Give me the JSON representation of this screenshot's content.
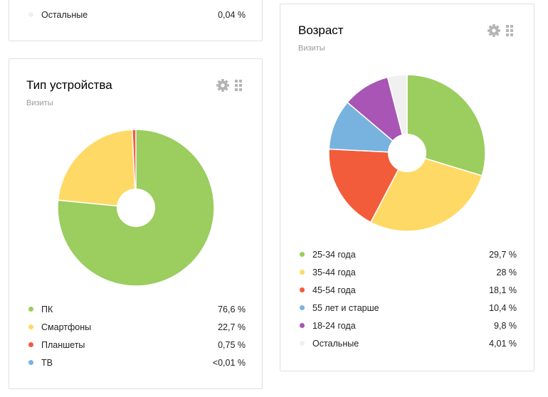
{
  "top_card": {
    "legend": [
      {
        "label": "Остальные",
        "value": "0,04 %",
        "color": "#f0f0f0"
      }
    ]
  },
  "device_card": {
    "title": "Тип устройства",
    "subtitle": "Визиты",
    "settings_icon": "gear-icon",
    "drag_icon": "grid-icon",
    "chart_data": {
      "type": "pie",
      "categories": [
        "ПК",
        "Смартфоны",
        "Планшеты",
        "ТВ"
      ],
      "values": [
        76.6,
        22.7,
        0.75,
        0.01
      ],
      "colors": [
        "#9bcd5f",
        "#ffd966",
        "#f25c3b",
        "#78b3e0"
      ]
    },
    "legend": [
      {
        "label": "ПК",
        "value": "76,6 %",
        "color": "#9bcd5f"
      },
      {
        "label": "Смартфоны",
        "value": "22,7 %",
        "color": "#ffd966"
      },
      {
        "label": "Планшеты",
        "value": "0,75 %",
        "color": "#f25c3b"
      },
      {
        "label": "ТВ",
        "value": "<0,01 %",
        "color": "#78b3e0"
      }
    ]
  },
  "age_card": {
    "title": "Возраст",
    "subtitle": "Визиты",
    "settings_icon": "gear-icon",
    "drag_icon": "grid-icon",
    "chart_data": {
      "type": "pie",
      "categories": [
        "25-34 года",
        "35-44 года",
        "45-54 года",
        "55 лет и старше",
        "18-24 года",
        "Остальные"
      ],
      "values": [
        29.7,
        28,
        18.1,
        10.4,
        9.8,
        4.01
      ],
      "colors": [
        "#9bcd5f",
        "#ffd966",
        "#f25c3b",
        "#78b3e0",
        "#a855b5",
        "#f0f0f0"
      ]
    },
    "legend": [
      {
        "label": "25-34 года",
        "value": "29,7 %",
        "color": "#9bcd5f"
      },
      {
        "label": "35-44 года",
        "value": "28 %",
        "color": "#ffd966"
      },
      {
        "label": "45-54 года",
        "value": "18,1 %",
        "color": "#f25c3b"
      },
      {
        "label": "55 лет и старше",
        "value": "10,4 %",
        "color": "#78b3e0"
      },
      {
        "label": "18-24 года",
        "value": "9,8 %",
        "color": "#a855b5"
      },
      {
        "label": "Остальные",
        "value": "4,01 %",
        "color": "#f0f0f0"
      }
    ]
  }
}
